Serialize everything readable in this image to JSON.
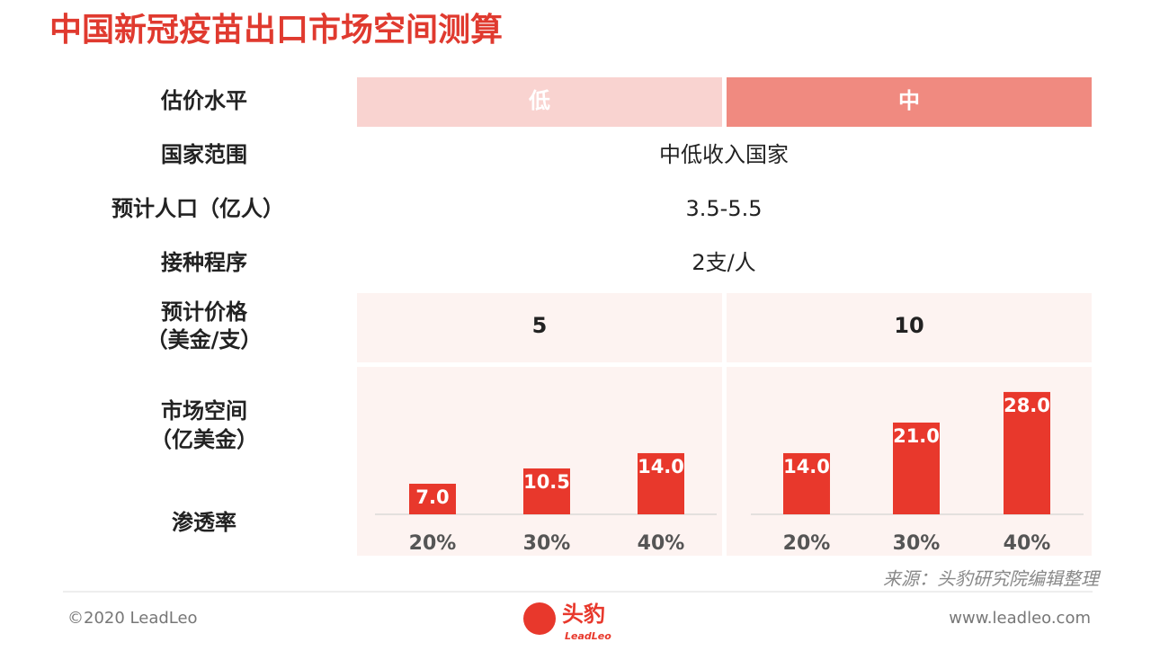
{
  "title": "中国新冠疫苗出口市场空间测算",
  "table": {
    "rows": [
      {
        "label": [
          "估价水平"
        ],
        "cells": [
          "低",
          "中"
        ]
      },
      {
        "label": [
          "国家范围"
        ],
        "cells": [
          "中低收入国家"
        ]
      },
      {
        "label": [
          "预计人口（亿人）"
        ],
        "cells": [
          "3.5-5.5"
        ]
      },
      {
        "label": [
          "接种程序"
        ],
        "cells": [
          "2支/人"
        ]
      },
      {
        "label": [
          "预计价格",
          "（美金/支）"
        ],
        "cells": [
          5,
          10
        ]
      },
      {
        "label": [
          "市场空间",
          "（亿美金）"
        ]
      },
      {
        "label": [
          "渗透率"
        ]
      }
    ]
  },
  "chart_data": [
    {
      "type": "bar",
      "categories": [
        "20%",
        "30%",
        "40%"
      ],
      "values": [
        7.0,
        10.5,
        14.0
      ],
      "value_labels": [
        "7.0",
        "10.5",
        "14.0"
      ],
      "color": "#e8382c"
    },
    {
      "type": "bar",
      "categories": [
        "20%",
        "30%",
        "40%"
      ],
      "values": [
        14.0,
        21.0,
        28.0
      ],
      "value_labels": [
        "14.0",
        "21.0",
        "28.0"
      ],
      "color": "#e8382c"
    }
  ],
  "source": "来源：头豹研究院编辑整理",
  "footer": {
    "copyright": "©2020 LeadLeo",
    "website": "www.leadleo.com",
    "logo": {
      "name": "头豹",
      "sub": "LeadLeo"
    }
  }
}
